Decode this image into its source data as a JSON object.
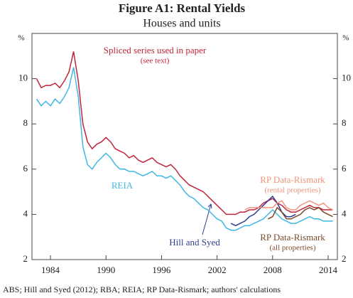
{
  "chart_data": {
    "type": "line",
    "title": "Figure A1: Rental Yields",
    "subtitle": "Houses and units",
    "y_unit": "%",
    "source": "ABS; Hill and Syed (2012); RBA; REIA; RP Data-Rismark; authors' calculations",
    "xlim": [
      1982,
      2015
    ],
    "xticks": [
      1984,
      1990,
      1996,
      2002,
      2008,
      2014
    ],
    "ylim": [
      2,
      12
    ],
    "yticks": [
      2,
      4,
      6,
      8,
      10
    ],
    "x": [
      1982.5,
      1983,
      1983.5,
      1984,
      1984.5,
      1985,
      1985.5,
      1986,
      1986.5,
      1987,
      1987.5,
      1988,
      1988.5,
      1989,
      1989.5,
      1990,
      1990.5,
      1991,
      1991.5,
      1992,
      1992.5,
      1993,
      1993.5,
      1994,
      1994.5,
      1995,
      1995.5,
      1996,
      1996.5,
      1997,
      1997.5,
      1998,
      1998.5,
      1999,
      1999.5,
      2000,
      2000.5,
      2001,
      2001.5,
      2002,
      2002.5,
      2003,
      2003.5,
      2004,
      2004.5,
      2005,
      2005.5,
      2006,
      2006.5,
      2007,
      2007.5,
      2008,
      2008.5,
      2009,
      2009.5,
      2010,
      2010.5,
      2011,
      2011.5,
      2012,
      2012.5,
      2013,
      2013.5,
      2014,
      2014.5
    ],
    "series": [
      {
        "name": "Spliced series used in paper",
        "note": "(see text)",
        "color": "#c0243a",
        "values": [
          10.0,
          9.6,
          9.7,
          9.7,
          9.8,
          9.6,
          9.9,
          10.3,
          11.2,
          9.9,
          8.0,
          7.2,
          6.9,
          7.1,
          7.2,
          7.4,
          7.2,
          6.9,
          6.8,
          6.7,
          6.5,
          6.6,
          6.4,
          6.3,
          6.4,
          6.5,
          6.3,
          6.2,
          6.1,
          6.2,
          6.0,
          5.7,
          5.5,
          5.3,
          5.2,
          5.1,
          5.0,
          4.8,
          4.6,
          4.4,
          4.2,
          4.0,
          4.0,
          4.0,
          4.1,
          4.1,
          4.2,
          4.2,
          4.3,
          4.5,
          4.6,
          4.7,
          4.5,
          4.4,
          4.2,
          4.1,
          4.1,
          4.2,
          4.3,
          4.4,
          4.3,
          4.3,
          4.2,
          4.2,
          4.2
        ]
      },
      {
        "name": "REIA",
        "color": "#3fb7e6",
        "values": [
          9.1,
          8.8,
          9.0,
          8.8,
          9.1,
          8.9,
          9.2,
          9.6,
          10.5,
          9.2,
          7.0,
          6.2,
          6.0,
          6.3,
          6.5,
          6.7,
          6.5,
          6.2,
          6.0,
          6.0,
          5.9,
          5.9,
          5.8,
          5.7,
          5.8,
          5.9,
          5.7,
          5.7,
          5.6,
          5.7,
          5.5,
          5.3,
          5.0,
          4.8,
          4.7,
          4.5,
          4.3,
          4.2,
          4.0,
          3.8,
          3.7,
          3.4,
          3.3,
          3.3,
          3.4,
          3.5,
          3.5,
          3.6,
          3.7,
          3.8,
          4.0,
          4.2,
          4.0,
          3.8,
          3.7,
          3.6,
          3.6,
          3.7,
          3.8,
          3.9,
          3.8,
          3.8,
          3.7,
          3.7,
          3.7
        ]
      },
      {
        "name": "Hill and Syed",
        "color": "#2c3e8c",
        "values": [
          null,
          null,
          null,
          null,
          null,
          null,
          null,
          null,
          null,
          null,
          null,
          null,
          null,
          null,
          null,
          null,
          null,
          null,
          null,
          null,
          null,
          null,
          null,
          null,
          null,
          null,
          null,
          null,
          null,
          null,
          null,
          null,
          null,
          null,
          null,
          null,
          null,
          null,
          null,
          null,
          null,
          null,
          3.6,
          3.5,
          3.6,
          3.7,
          3.9,
          4.0,
          4.2,
          4.4,
          4.6,
          4.8,
          4.5,
          4.1,
          3.9,
          3.9,
          4.0,
          null,
          null,
          null,
          null,
          null,
          null,
          null,
          null
        ]
      },
      {
        "name": "RP Data-Rismark",
        "note": "(rental properties)",
        "color": "#f0937a",
        "values": [
          null,
          null,
          null,
          null,
          null,
          null,
          null,
          null,
          null,
          null,
          null,
          null,
          null,
          null,
          null,
          null,
          null,
          null,
          null,
          null,
          null,
          null,
          null,
          null,
          null,
          null,
          null,
          null,
          null,
          null,
          null,
          null,
          null,
          null,
          null,
          null,
          null,
          null,
          null,
          null,
          null,
          null,
          null,
          null,
          null,
          4.2,
          4.3,
          4.3,
          4.3,
          4.3,
          4.3,
          4.3,
          4.5,
          4.6,
          4.3,
          4.2,
          4.2,
          4.4,
          4.5,
          4.6,
          4.5,
          4.4,
          4.5,
          4.3,
          4.2
        ]
      },
      {
        "name": "RP Data-Rismark",
        "note": "(all properties)",
        "color": "#7a4a2a",
        "values": [
          null,
          null,
          null,
          null,
          null,
          null,
          null,
          null,
          null,
          null,
          null,
          null,
          null,
          null,
          null,
          null,
          null,
          null,
          null,
          null,
          null,
          null,
          null,
          null,
          null,
          null,
          null,
          null,
          null,
          null,
          null,
          null,
          null,
          null,
          null,
          null,
          null,
          null,
          null,
          null,
          null,
          null,
          null,
          null,
          null,
          null,
          null,
          null,
          null,
          null,
          3.8,
          3.9,
          4.3,
          4.1,
          3.8,
          3.8,
          3.9,
          4.0,
          4.2,
          4.3,
          4.2,
          4.3,
          4.1,
          4.0,
          3.9
        ]
      }
    ]
  }
}
